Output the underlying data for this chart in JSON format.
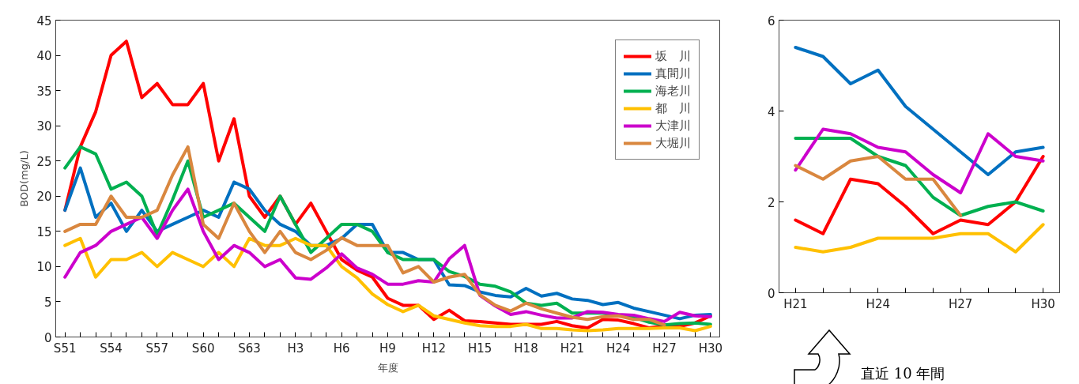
{
  "chart_data": [
    {
      "type": "line",
      "xlabel": "年度",
      "ylabel": "BOD(mg/L)",
      "categories": [
        "S51",
        null,
        null,
        "S54",
        null,
        null,
        "S57",
        null,
        null,
        "S60",
        null,
        null,
        "S63",
        null,
        null,
        "H3",
        null,
        null,
        "H6",
        null,
        null,
        "H9",
        null,
        null,
        "H12",
        null,
        null,
        "H15",
        null,
        null,
        "H18",
        null,
        null,
        "H21",
        null,
        null,
        "H24",
        null,
        null,
        "H27",
        null,
        null,
        "H30"
      ],
      "ylim": [
        0,
        45
      ],
      "yticks": [
        0,
        5,
        10,
        15,
        20,
        25,
        30,
        35,
        40,
        45
      ],
      "grid": false,
      "legend": "top right",
      "marker": "none",
      "line_style": "solid",
      "series": [
        {
          "name": "坂　川",
          "color": "#ff0000",
          "values": [
            18,
            27,
            32,
            40,
            42,
            34,
            36,
            33,
            33,
            36,
            25,
            31,
            20,
            17,
            20,
            16,
            19,
            15,
            11,
            9.5,
            8.5,
            5.5,
            4.5,
            4.5,
            2.5,
            3.8,
            2.3,
            2.2,
            2.0,
            1.8,
            1.8,
            1.8,
            2.2,
            1.6,
            1.3,
            2.5,
            2.4,
            1.9,
            1.3,
            1.6,
            1.5,
            2.0,
            3.0
          ]
        },
        {
          "name": "真間川",
          "color": "#0070c0",
          "values": [
            18,
            24,
            17,
            19,
            15,
            18,
            15,
            16,
            17,
            18,
            17,
            22,
            21,
            18,
            16,
            15,
            13,
            13,
            14,
            16,
            16,
            12,
            12,
            11,
            11,
            7.4,
            7.3,
            6.4,
            5.9,
            5.7,
            6.9,
            5.8,
            6.2,
            5.4,
            5.2,
            4.6,
            4.9,
            4.1,
            3.6,
            3.1,
            2.6,
            3.1,
            3.2
          ]
        },
        {
          "name": "海老川",
          "color": "#00b050",
          "values": [
            24,
            27,
            26,
            21,
            22,
            20,
            14.5,
            19.5,
            25,
            17,
            18,
            19,
            17,
            15,
            20,
            16,
            12,
            14,
            16,
            16,
            15,
            12,
            11,
            11,
            11,
            9.3,
            8.6,
            7.5,
            7.2,
            6.4,
            4.8,
            4.5,
            4.8,
            3.4,
            3.4,
            3.4,
            3.0,
            2.8,
            2.1,
            1.7,
            1.9,
            2.0,
            1.8
          ]
        },
        {
          "name": "都　川",
          "color": "#ffc000",
          "values": [
            13,
            14,
            8.5,
            11,
            11,
            12,
            10,
            12,
            11,
            10,
            12,
            10,
            14,
            13,
            13,
            14,
            13,
            13,
            10,
            8.4,
            6.1,
            4.6,
            3.6,
            4.5,
            3,
            2.5,
            2,
            1.6,
            1.5,
            1.5,
            1.8,
            1.2,
            1.2,
            1.0,
            0.9,
            1.0,
            1.2,
            1.2,
            1.2,
            1.3,
            1.3,
            0.9,
            1.5
          ]
        },
        {
          "name": "大津川",
          "color": "#cc00cc",
          "values": [
            8.5,
            12,
            13,
            15,
            16,
            17,
            14,
            18,
            21,
            15,
            11,
            13,
            12,
            10,
            11,
            8.4,
            8.2,
            9.8,
            11.8,
            9.8,
            8.9,
            7.5,
            7.5,
            8,
            7.8,
            11.1,
            13,
            5.9,
            4.4,
            3.2,
            3.6,
            3.1,
            2.7,
            2.7,
            3.6,
            3.5,
            3.2,
            3.1,
            2.6,
            2.2,
            3.5,
            3.0,
            2.9
          ]
        },
        {
          "name": "大堀川",
          "color": "#d9873f",
          "values": [
            15,
            16,
            16,
            20,
            17,
            17,
            18,
            23,
            27,
            16,
            14,
            19,
            15,
            12,
            15,
            12,
            11,
            12.3,
            14.1,
            13,
            13,
            13,
            9.1,
            10,
            7.8,
            8.5,
            8.9,
            6,
            4.5,
            3.7,
            4.8,
            4.0,
            3.4,
            2.8,
            2.5,
            2.9,
            3.0,
            2.5,
            2.5,
            1.7,
            null,
            null,
            null
          ]
        }
      ]
    },
    {
      "type": "line",
      "categories": [
        "H21",
        null,
        null,
        "H24",
        null,
        null,
        "H27",
        null,
        null,
        "H30"
      ],
      "ylim": [
        0,
        6
      ],
      "yticks": [
        0,
        2,
        4,
        6
      ],
      "grid": false,
      "legend": false,
      "marker": "none",
      "line_style": "solid",
      "annotations": [
        "直近 10 年間"
      ],
      "series": [
        {
          "color": "#ff0000",
          "values": [
            1.6,
            1.3,
            2.5,
            2.4,
            1.9,
            1.3,
            1.6,
            1.5,
            2.0,
            3.0
          ]
        },
        {
          "color": "#0070c0",
          "values": [
            5.4,
            5.2,
            4.6,
            4.9,
            4.1,
            3.6,
            3.1,
            2.6,
            3.1,
            3.2
          ]
        },
        {
          "color": "#00b050",
          "values": [
            3.4,
            3.4,
            3.4,
            3.0,
            2.8,
            2.1,
            1.7,
            1.9,
            2.0,
            1.8
          ]
        },
        {
          "color": "#ffc000",
          "values": [
            1.0,
            0.9,
            1.0,
            1.2,
            1.2,
            1.2,
            1.3,
            1.3,
            0.9,
            1.5
          ]
        },
        {
          "color": "#cc00cc",
          "values": [
            2.7,
            3.6,
            3.5,
            3.2,
            3.1,
            2.6,
            2.2,
            3.5,
            3.0,
            2.9
          ]
        },
        {
          "color": "#d9873f",
          "values": [
            2.8,
            2.5,
            2.9,
            3.0,
            2.5,
            2.5,
            1.7,
            null,
            null,
            null
          ]
        }
      ]
    }
  ]
}
